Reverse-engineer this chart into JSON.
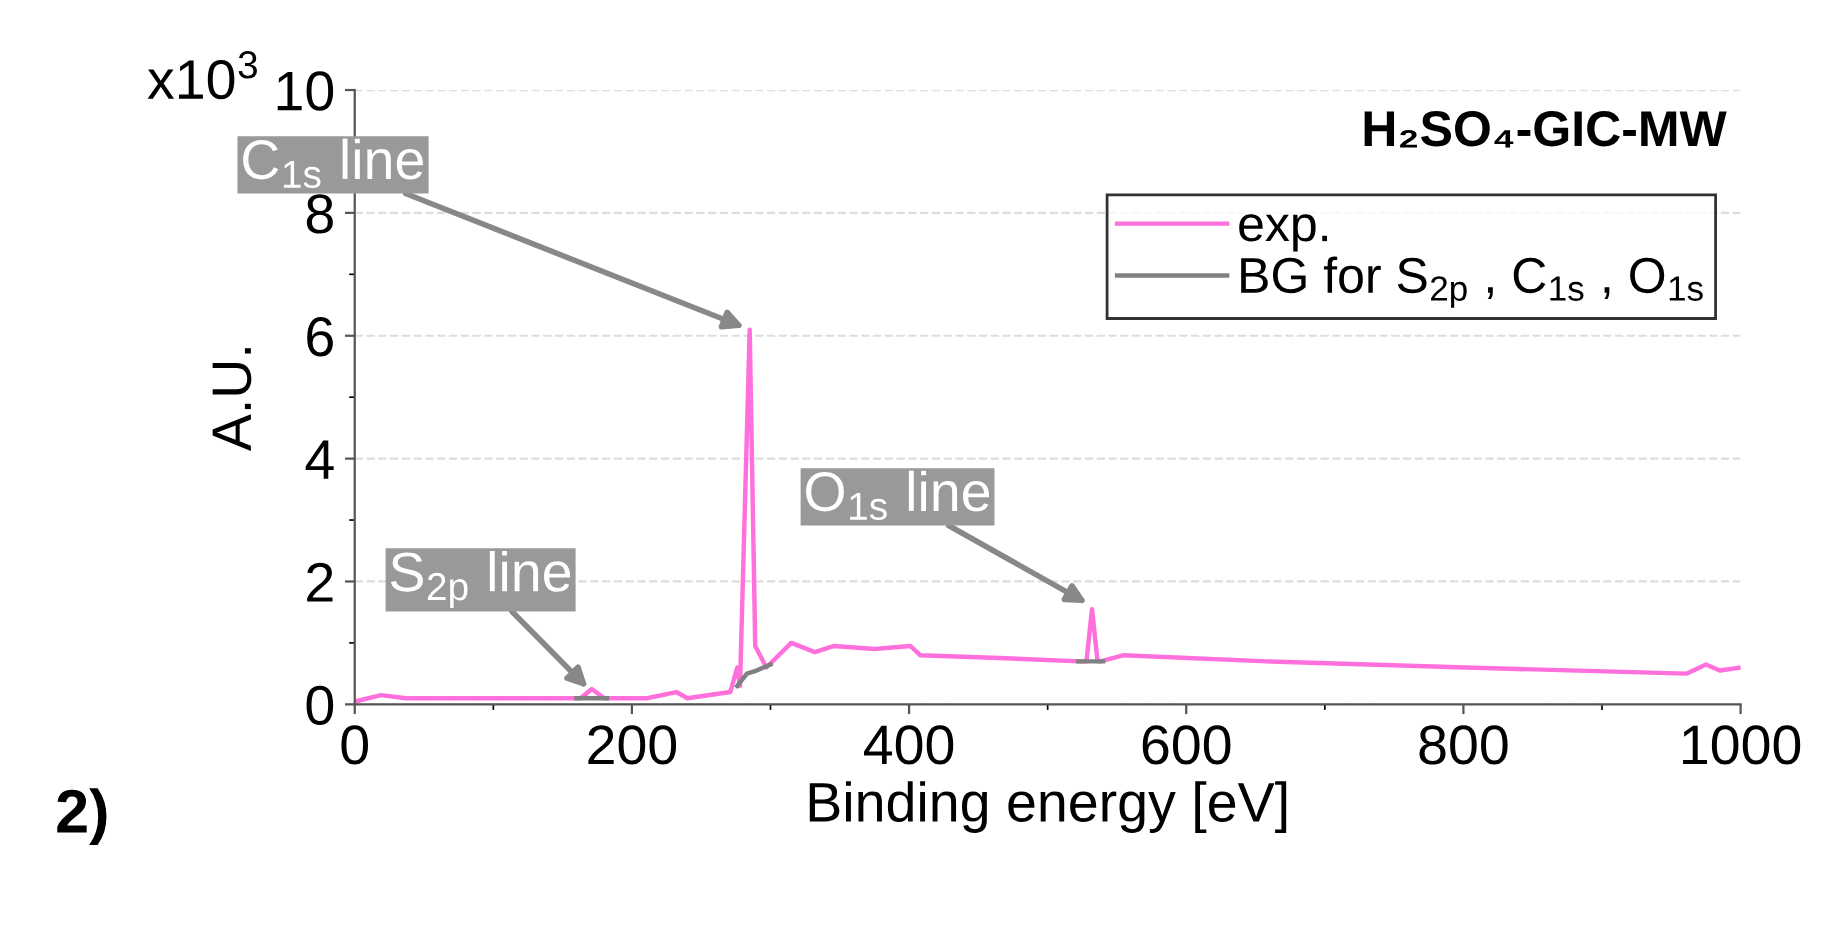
{
  "chart_data": {
    "type": "line",
    "title": "H₂SO₄-GIC-MW",
    "xlabel": "Binding energy [eV]",
    "ylabel": "A.U.",
    "xlim": [
      0,
      1000
    ],
    "xticks": [
      0,
      200,
      400,
      600,
      800,
      1000
    ],
    "ylim": [
      0,
      10
    ],
    "yticks": [
      0,
      2,
      4,
      6,
      8,
      10
    ],
    "grid": "y",
    "legend": "top right",
    "series": [
      {
        "name": "exp.",
        "color": "#ff70dc",
        "x": [
          1,
          19,
          37,
          100,
          163,
          171,
          180,
          211,
          232,
          240,
          271,
          276,
          278,
          285,
          289,
          297,
          315,
          332,
          346,
          375,
          401,
          408,
          470,
          523,
          528,
          532,
          536,
          538,
          555,
          658,
          802,
          961,
          975,
          985,
          1000
        ],
        "values": [
          0.05,
          0.15,
          0.1,
          0.1,
          0.1,
          0.25,
          0.1,
          0.1,
          0.2,
          0.1,
          0.2,
          0.6,
          0.3,
          6.1,
          0.95,
          0.6,
          1.0,
          0.85,
          0.95,
          0.9,
          0.95,
          0.8,
          0.75,
          0.7,
          0.7,
          1.55,
          0.7,
          0.7,
          0.8,
          0.7,
          0.6,
          0.5,
          0.65,
          0.55,
          0.6
        ]
      },
      {
        "name": "BG for S$_{2p}$ , C$_{1s}$ , O$_{1s}$",
        "color": "#808080",
        "x": [
          160,
          182,
          200,
          276,
          283,
          290,
          300,
          480,
          522,
          540
        ],
        "values": [
          0.1,
          0.1,
          null,
          0.3,
          0.5,
          0.55,
          0.65,
          null,
          0.7,
          0.7
        ]
      }
    ],
    "annotations": [
      {
        "text": "C$_{1s}$ line",
        "x": 285,
        "y": 6.1
      },
      {
        "text": "S$_{2p}$ line",
        "x": 171,
        "y": 0.2
      },
      {
        "text": "O$_{1s}$ line",
        "x": 532,
        "y": 1.6
      },
      "x10$^{3}$",
      "2)"
    ]
  }
}
